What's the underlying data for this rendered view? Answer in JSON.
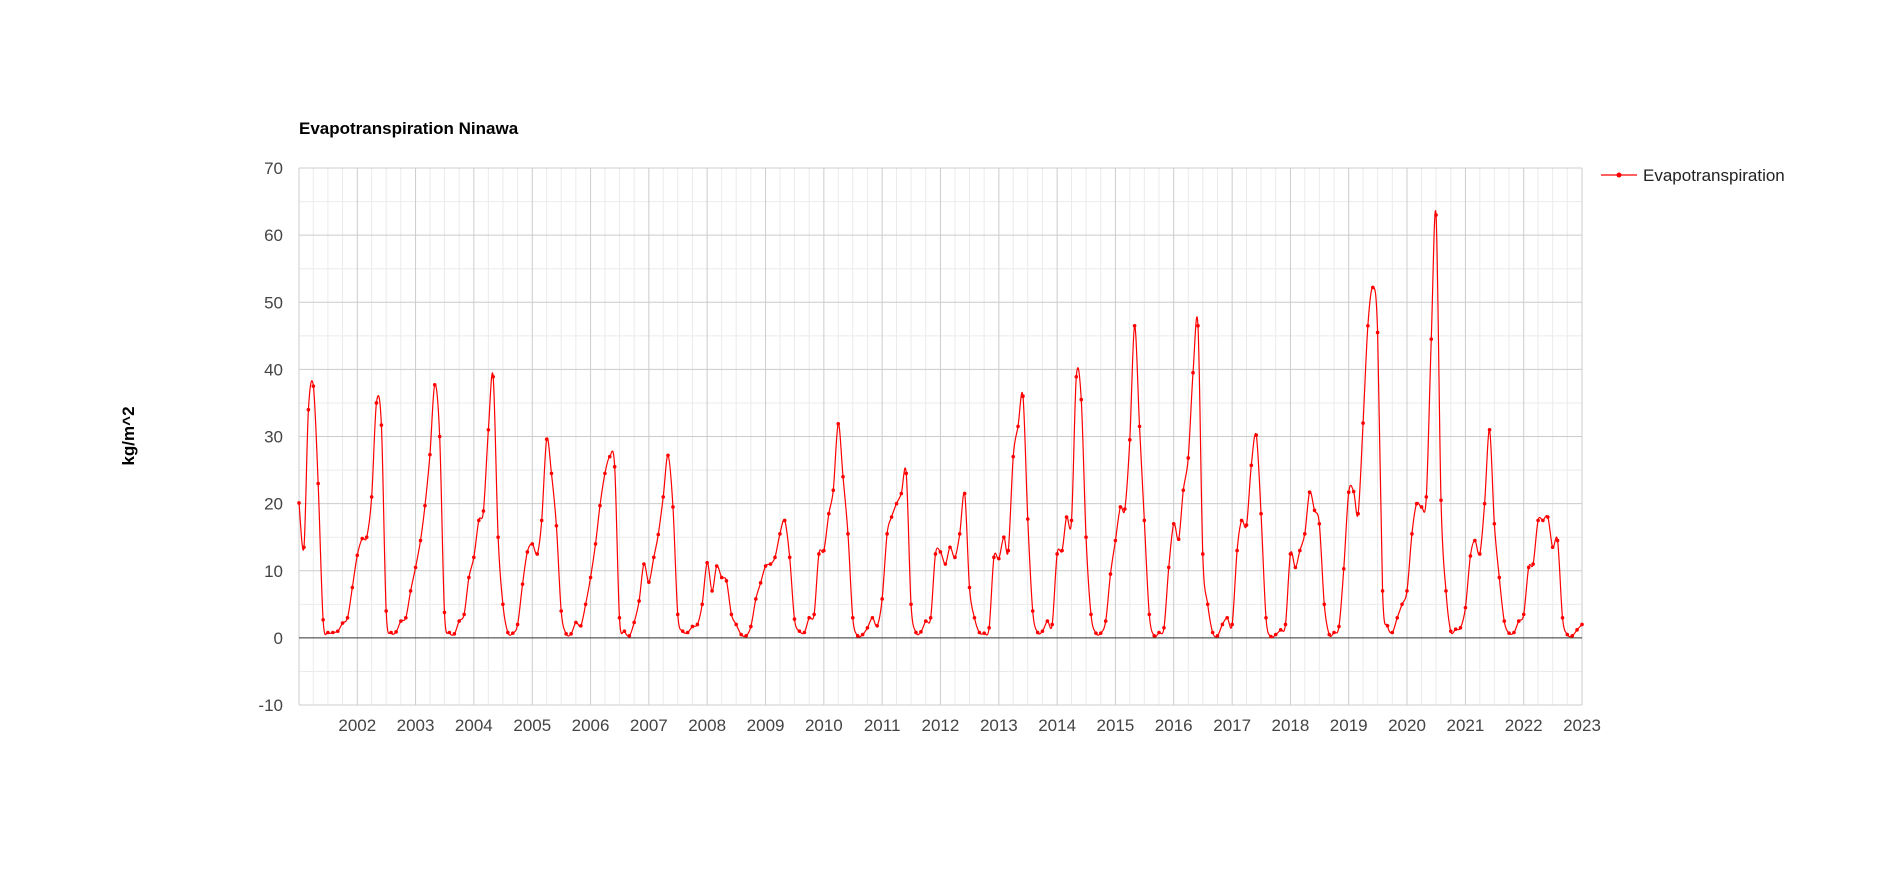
{
  "chart_data": {
    "type": "line",
    "title": "Evapotranspiration Ninawa",
    "xlabel": "",
    "ylabel": "kg/m^2",
    "ylim": [
      -10,
      70
    ],
    "xlim": [
      "2001-01-01",
      "2023-01-01"
    ],
    "yticks": [
      -10,
      0,
      10,
      20,
      30,
      40,
      50,
      60,
      70
    ],
    "xticks": [
      "2002",
      "2003",
      "2004",
      "2005",
      "2006",
      "2007",
      "2008",
      "2009",
      "2010",
      "2011",
      "2012",
      "2013",
      "2014",
      "2015",
      "2016",
      "2017",
      "2018",
      "2019",
      "2020",
      "2021",
      "2022",
      "2023"
    ],
    "grid": true,
    "legend_position": "right",
    "line_color": "#ff0000",
    "series": [
      {
        "name": "Evapotranspiration",
        "x": [
          "2001-01-01",
          "2001-02-01",
          "2001-03-01",
          "2001-04-01",
          "2001-05-01",
          "2001-06-01",
          "2001-07-01",
          "2001-08-01",
          "2001-09-01",
          "2001-10-01",
          "2001-11-01",
          "2001-12-01",
          "2002-01-01",
          "2002-02-01",
          "2002-03-01",
          "2002-04-01",
          "2002-05-01",
          "2002-06-01",
          "2002-07-01",
          "2002-08-01",
          "2002-09-01",
          "2002-10-01",
          "2002-11-01",
          "2002-12-01",
          "2003-01-01",
          "2003-02-01",
          "2003-03-01",
          "2003-04-01",
          "2003-05-01",
          "2003-06-01",
          "2003-07-01",
          "2003-08-01",
          "2003-09-01",
          "2003-10-01",
          "2003-11-01",
          "2003-12-01",
          "2004-01-01",
          "2004-02-01",
          "2004-03-01",
          "2004-04-01",
          "2004-05-01",
          "2004-06-01",
          "2004-07-01",
          "2004-08-01",
          "2004-09-01",
          "2004-10-01",
          "2004-11-01",
          "2004-12-01",
          "2005-01-01",
          "2005-02-01",
          "2005-03-01",
          "2005-04-01",
          "2005-05-01",
          "2005-06-01",
          "2005-07-01",
          "2005-08-01",
          "2005-09-01",
          "2005-10-01",
          "2005-11-01",
          "2005-12-01",
          "2006-01-01",
          "2006-02-01",
          "2006-03-01",
          "2006-04-01",
          "2006-05-01",
          "2006-06-01",
          "2006-07-01",
          "2006-08-01",
          "2006-09-01",
          "2006-10-01",
          "2006-11-01",
          "2006-12-01",
          "2007-01-01",
          "2007-02-01",
          "2007-03-01",
          "2007-04-01",
          "2007-05-01",
          "2007-06-01",
          "2007-07-01",
          "2007-08-01",
          "2007-09-01",
          "2007-10-01",
          "2007-11-01",
          "2007-12-01",
          "2008-01-01",
          "2008-02-01",
          "2008-03-01",
          "2008-04-01",
          "2008-05-01",
          "2008-06-01",
          "2008-07-01",
          "2008-08-01",
          "2008-09-01",
          "2008-10-01",
          "2008-11-01",
          "2008-12-01",
          "2009-01-01",
          "2009-02-01",
          "2009-03-01",
          "2009-04-01",
          "2009-05-01",
          "2009-06-01",
          "2009-07-01",
          "2009-08-01",
          "2009-09-01",
          "2009-10-01",
          "2009-11-01",
          "2009-12-01",
          "2010-01-01",
          "2010-02-01",
          "2010-03-01",
          "2010-04-01",
          "2010-05-01",
          "2010-06-01",
          "2010-07-01",
          "2010-08-01",
          "2010-09-01",
          "2010-10-01",
          "2010-11-01",
          "2010-12-01",
          "2011-01-01",
          "2011-02-01",
          "2011-03-01",
          "2011-04-01",
          "2011-05-01",
          "2011-06-01",
          "2011-07-01",
          "2011-08-01",
          "2011-09-01",
          "2011-10-01",
          "2011-11-01",
          "2011-12-01",
          "2012-01-01",
          "2012-02-01",
          "2012-03-01",
          "2012-04-01",
          "2012-05-01",
          "2012-06-01",
          "2012-07-01",
          "2012-08-01",
          "2012-09-01",
          "2012-10-01",
          "2012-11-01",
          "2012-12-01",
          "2013-01-01",
          "2013-02-01",
          "2013-03-01",
          "2013-04-01",
          "2013-05-01",
          "2013-06-01",
          "2013-07-01",
          "2013-08-01",
          "2013-09-01",
          "2013-10-01",
          "2013-11-01",
          "2013-12-01",
          "2014-01-01",
          "2014-02-01",
          "2014-03-01",
          "2014-04-01",
          "2014-05-01",
          "2014-06-01",
          "2014-07-01",
          "2014-08-01",
          "2014-09-01",
          "2014-10-01",
          "2014-11-01",
          "2014-12-01",
          "2015-01-01",
          "2015-02-01",
          "2015-03-01",
          "2015-04-01",
          "2015-05-01",
          "2015-06-01",
          "2015-07-01",
          "2015-08-01",
          "2015-09-01",
          "2015-10-01",
          "2015-11-01",
          "2015-12-01",
          "2016-01-01",
          "2016-02-01",
          "2016-03-01",
          "2016-04-01",
          "2016-05-01",
          "2016-06-01",
          "2016-07-01",
          "2016-08-01",
          "2016-09-01",
          "2016-10-01",
          "2016-11-01",
          "2016-12-01",
          "2017-01-01",
          "2017-02-01",
          "2017-03-01",
          "2017-04-01",
          "2017-05-01",
          "2017-06-01",
          "2017-07-01",
          "2017-08-01",
          "2017-09-01",
          "2017-10-01",
          "2017-11-01",
          "2017-12-01",
          "2018-01-01",
          "2018-02-01",
          "2018-03-01",
          "2018-04-01",
          "2018-05-01",
          "2018-06-01",
          "2018-07-01",
          "2018-08-01",
          "2018-09-01",
          "2018-10-01",
          "2018-11-01",
          "2018-12-01",
          "2019-01-01",
          "2019-02-01",
          "2019-03-01",
          "2019-04-01",
          "2019-05-01",
          "2019-06-01",
          "2019-07-01",
          "2019-08-01",
          "2019-09-01",
          "2019-10-01",
          "2019-11-01",
          "2019-12-01",
          "2020-01-01",
          "2020-02-01",
          "2020-03-01",
          "2020-04-01",
          "2020-05-01",
          "2020-06-01",
          "2020-07-01",
          "2020-08-01",
          "2020-09-01",
          "2020-10-01",
          "2020-11-01",
          "2020-12-01",
          "2021-01-01",
          "2021-02-01",
          "2021-03-01",
          "2021-04-01",
          "2021-05-01",
          "2021-06-01",
          "2021-07-01",
          "2021-08-01",
          "2021-09-01",
          "2021-10-01",
          "2021-11-01",
          "2021-12-01",
          "2022-01-01",
          "2022-02-01",
          "2022-03-01",
          "2022-04-01",
          "2022-05-01",
          "2022-06-01",
          "2022-07-01",
          "2022-08-01",
          "2022-09-01",
          "2022-10-01",
          "2022-11-01",
          "2022-12-01",
          "2023-01-01"
        ],
        "values": [
          20.1,
          13.5,
          34.0,
          37.5,
          23.0,
          2.7,
          0.8,
          0.8,
          1.0,
          2.2,
          3.0,
          7.5,
          12.3,
          14.8,
          15.0,
          21.0,
          35.0,
          31.7,
          4.0,
          0.8,
          0.9,
          2.5,
          3.0,
          7.0,
          10.5,
          14.5,
          19.7,
          27.3,
          37.7,
          30.0,
          3.8,
          0.8,
          0.6,
          2.5,
          3.5,
          9.0,
          12.0,
          17.5,
          18.9,
          31.0,
          38.9,
          15.0,
          5.0,
          0.8,
          0.7,
          2.0,
          8.0,
          12.8,
          14.0,
          12.5,
          17.5,
          29.6,
          24.5,
          16.7,
          4.0,
          0.6,
          0.6,
          2.3,
          1.8,
          5.0,
          9.0,
          14.0,
          19.7,
          24.5,
          27.0,
          25.5,
          3.0,
          1.0,
          0.3,
          2.3,
          5.5,
          11.0,
          8.3,
          12.0,
          15.4,
          21.0,
          27.2,
          19.5,
          3.5,
          1.0,
          0.8,
          1.7,
          2.0,
          5.0,
          11.2,
          7.0,
          10.7,
          9.0,
          8.5,
          3.5,
          2.0,
          0.5,
          0.3,
          1.7,
          5.8,
          8.2,
          10.7,
          11.0,
          12.0,
          15.5,
          17.5,
          12.0,
          2.8,
          1.0,
          0.8,
          3.0,
          3.5,
          12.5,
          13.0,
          18.5,
          22.0,
          31.9,
          24.0,
          15.5,
          3.0,
          0.3,
          0.5,
          1.5,
          3.0,
          1.8,
          5.8,
          15.5,
          18.0,
          20.0,
          21.5,
          24.5,
          5.0,
          0.8,
          0.9,
          2.5,
          3.0,
          12.5,
          12.8,
          11.0,
          13.5,
          12.0,
          15.5,
          21.5,
          7.5,
          3.0,
          0.8,
          0.7,
          1.5,
          12.0,
          11.8,
          15.0,
          13.0,
          27.0,
          31.5,
          36.0,
          17.7,
          4.0,
          0.8,
          1.0,
          2.5,
          2.0,
          12.5,
          13.0,
          18.0,
          17.5,
          38.9,
          35.5,
          15.0,
          3.5,
          0.7,
          0.7,
          2.5,
          9.5,
          14.5,
          19.5,
          19.2,
          29.5,
          46.5,
          31.5,
          17.5,
          3.5,
          0.3,
          0.8,
          1.5,
          10.5,
          17.0,
          14.7,
          22.0,
          26.8,
          39.5,
          46.5,
          12.5,
          5.0,
          0.8,
          0.3,
          2.0,
          3.0,
          2.0,
          13.0,
          17.5,
          16.8,
          25.7,
          30.2,
          18.5,
          3.0,
          0.2,
          0.5,
          1.2,
          2.0,
          12.5,
          10.5,
          13.0,
          15.5,
          21.7,
          19.0,
          17.0,
          5.0,
          0.5,
          0.8,
          1.7,
          10.3,
          21.7,
          21.8,
          18.5,
          32.0,
          46.5,
          52.2,
          45.5,
          7.0,
          1.8,
          0.8,
          3.0,
          5.0,
          7.0,
          15.5,
          20.0,
          19.5,
          21.0,
          44.5,
          63.0,
          20.5,
          7.0,
          1.0,
          1.3,
          1.5,
          4.5,
          12.2,
          14.5,
          12.5,
          20.0,
          31.0,
          17.0,
          9.0,
          2.5,
          0.7,
          0.8,
          2.5,
          3.5,
          10.5,
          11.0,
          17.5,
          17.5,
          18.0,
          13.5,
          14.5,
          3.0,
          0.5,
          0.3,
          1.2,
          2.0
        ]
      }
    ]
  }
}
